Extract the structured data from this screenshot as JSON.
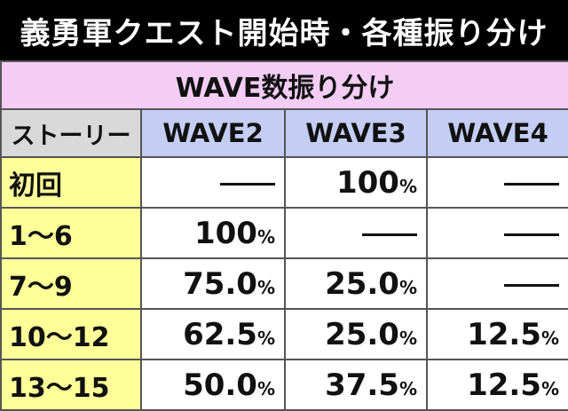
{
  "title": "義勇軍クエスト開始時・各種振り分け",
  "subtitle": "WAVE数振り分け",
  "row_header": "ストーリー",
  "columns": [
    "WAVE2",
    "WAVE3",
    "WAVE4"
  ],
  "rows": [
    {
      "story": "初回",
      "values": [
        "—",
        "100",
        "—"
      ]
    },
    {
      "story": "1〜6",
      "values": [
        "100",
        "—",
        "—"
      ]
    },
    {
      "story": "7〜9",
      "values": [
        "75.0",
        "25.0",
        "—"
      ]
    },
    {
      "story": "10〜12",
      "values": [
        "62.5",
        "25.0",
        "12.5"
      ]
    },
    {
      "story": "13〜15",
      "values": [
        "50.0",
        "37.5",
        "12.5"
      ]
    }
  ],
  "unit": "%",
  "colors": {
    "title_bg": "#000000",
    "subtitle_bg": "#f3cdf4",
    "column_header_bg": "#c4cdf3",
    "story_header_bg": "#d9d9d9",
    "row_header_bg": "#ffff99"
  }
}
